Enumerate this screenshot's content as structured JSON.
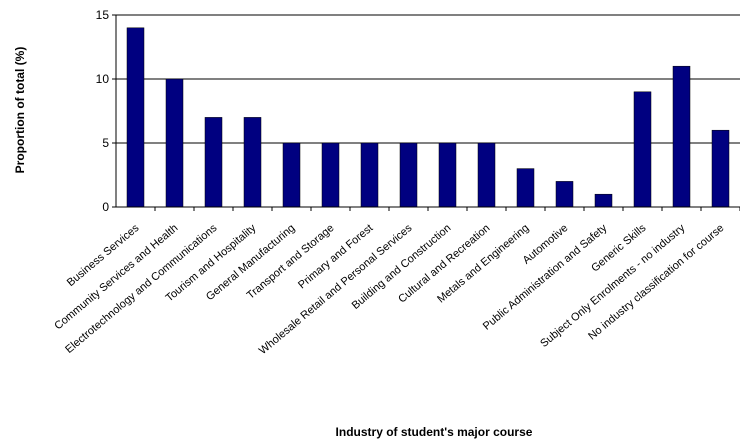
{
  "chart_data": {
    "type": "bar",
    "title": "",
    "xlabel": "Industry of student's major course",
    "ylabel": "Proportion of total (%)",
    "ylim": [
      0,
      15
    ],
    "yticks": [
      0,
      5,
      10,
      15
    ],
    "grid": true,
    "bar_color": "#000080",
    "categories": [
      "Business Services",
      "Community Services and Health",
      "Electrotechnology and Communications",
      "Tourism and Hospitality",
      "General Manufacturing",
      "Transport and Storage",
      "Primary and Forest",
      "Wholesale Retail and Personal Services",
      "Building and Construction",
      "Cultural and Recreation",
      "Metals and Engineering",
      "Automotive",
      "Public Administration and Safety",
      "Generic Skills",
      "Subject Only Enrolments - no industry",
      "No industry classification for course"
    ],
    "values": [
      14,
      10,
      7,
      7,
      5,
      5,
      5,
      5,
      5,
      5,
      3,
      2,
      1,
      9,
      11,
      6
    ]
  }
}
